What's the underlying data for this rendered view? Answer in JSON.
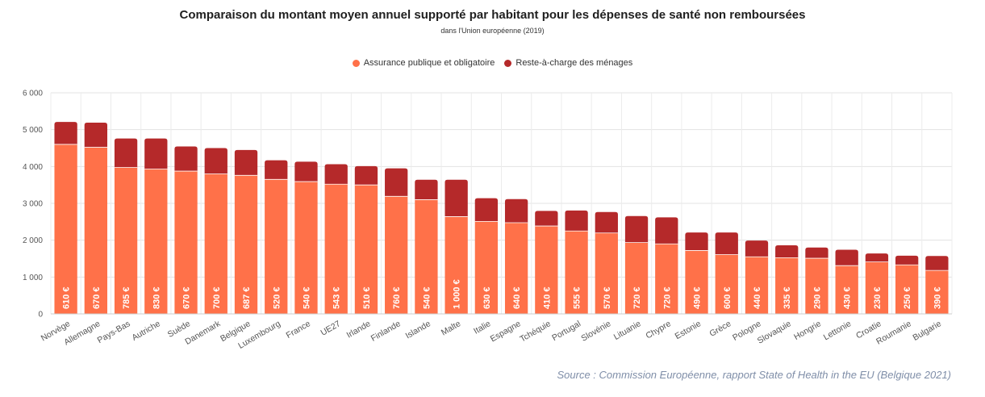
{
  "chart_data": {
    "type": "bar",
    "stacked": true,
    "title": "Comparaison du montant moyen annuel supporté par habitant pour les dépenses de santé non remboursées",
    "subtitle": "dans l'Union européenne (2019)",
    "source": "Source : Commission Européenne, rapport State of Health in the EU (Belgique 2021)",
    "ylim": [
      0,
      6000
    ],
    "yticks": [
      0,
      1000,
      2000,
      3000,
      4000,
      5000,
      6000
    ],
    "ytick_labels": [
      "0",
      "1 000",
      "2 000",
      "3 000",
      "4 000",
      "5 000",
      "6 000"
    ],
    "grid": true,
    "legend_position": "top-center",
    "categories": [
      "Norvège",
      "Allemagne",
      "Pays-Bas",
      "Autriche",
      "Suède",
      "Danemark",
      "Belgique",
      "Luxembourg",
      "France",
      "UE27",
      "Irlande",
      "Finlande",
      "Islande",
      "Malte",
      "Italie",
      "Espagne",
      "Tchéquie",
      "Portugal",
      "Slovénie",
      "Lituanie",
      "Chypre",
      "Estonie",
      "Grèce",
      "Pologne",
      "Slovaquie",
      "Hongrie",
      "Lettonie",
      "Croatie",
      "Roumanie",
      "Bulgarie"
    ],
    "series": [
      {
        "name": "Assurance publique et obligatoire",
        "color": "#ff7149",
        "values": [
          4600,
          4520,
          3975,
          3930,
          3875,
          3800,
          3760,
          3650,
          3590,
          3520,
          3500,
          3190,
          3100,
          2640,
          2510,
          2475,
          2385,
          2250,
          2195,
          1935,
          1900,
          1720,
          1610,
          1550,
          1525,
          1510,
          1310,
          1410,
          1330,
          1180
        ]
      },
      {
        "name": "Reste-à-charge des ménages",
        "color": "#b5292a",
        "values": [
          610,
          670,
          785,
          830,
          670,
          700,
          687,
          520,
          540,
          543,
          510,
          760,
          540,
          1000,
          630,
          640,
          410,
          555,
          570,
          720,
          720,
          490,
          600,
          440,
          335,
          290,
          430,
          230,
          250,
          390
        ]
      }
    ],
    "data_labels": [
      "610 €",
      "670 €",
      "785 €",
      "830 €",
      "670 €",
      "700 €",
      "687 €",
      "520 €",
      "540 €",
      "543 €",
      "510 €",
      "760 €",
      "540 €",
      "1 000 €",
      "630 €",
      "640 €",
      "410 €",
      "555 €",
      "570 €",
      "720 €",
      "720 €",
      "490 €",
      "600 €",
      "440 €",
      "335 €",
      "290 €",
      "430 €",
      "230 €",
      "250 €",
      "390 €"
    ]
  }
}
